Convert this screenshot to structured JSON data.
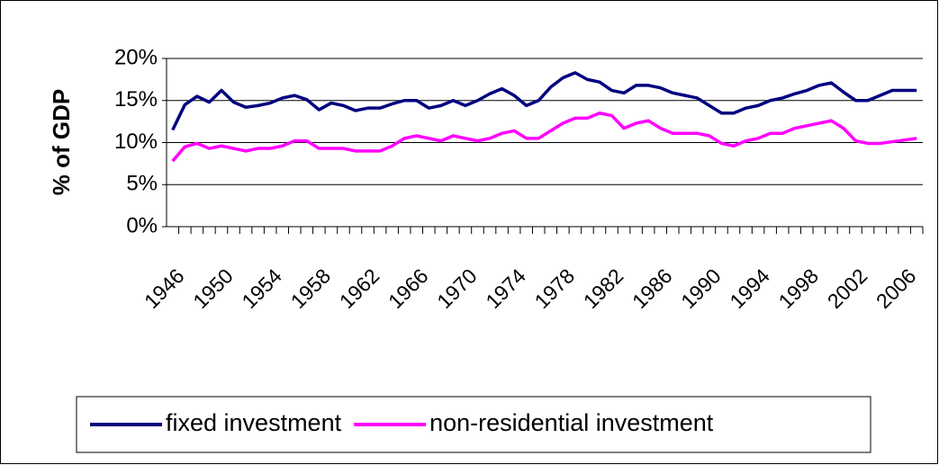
{
  "chart_data": {
    "type": "line",
    "y_label": "% of GDP",
    "categories": [
      "1946",
      null,
      null,
      null,
      "1950",
      null,
      null,
      null,
      "1954",
      null,
      null,
      null,
      "1958",
      null,
      null,
      null,
      "1962",
      null,
      null,
      null,
      "1966",
      null,
      null,
      null,
      "1970",
      null,
      null,
      null,
      "1974",
      null,
      null,
      null,
      "1978",
      null,
      null,
      null,
      "1982",
      null,
      null,
      null,
      "1986",
      null,
      null,
      null,
      "1990",
      null,
      null,
      null,
      "1994",
      null,
      null,
      null,
      "1998",
      null,
      null,
      null,
      "2002",
      null,
      null,
      null,
      "2006",
      null
    ],
    "series": [
      {
        "name": "fixed investment",
        "color": "#000080",
        "values": [
          11.5,
          14.5,
          15.5,
          14.8,
          16.2,
          14.8,
          14.2,
          14.4,
          14.7,
          15.3,
          15.6,
          15.1,
          13.9,
          14.7,
          14.4,
          13.8,
          14.1,
          14.1,
          14.6,
          15.0,
          15.0,
          14.1,
          14.4,
          15.0,
          14.4,
          15.0,
          15.8,
          16.4,
          15.6,
          14.4,
          15.0,
          16.6,
          17.7,
          18.3,
          17.5,
          17.2,
          16.2,
          15.9,
          16.8,
          16.8,
          16.5,
          15.9,
          15.6,
          15.3,
          14.4,
          13.5,
          13.5,
          14.1,
          14.4,
          15.0,
          15.3,
          15.8,
          16.2,
          16.8,
          17.1,
          16.0,
          15.0,
          15.0,
          15.6,
          16.2,
          16.2,
          16.2
        ]
      },
      {
        "name": "non-residential investment",
        "color": "#ff00ff",
        "values": [
          7.8,
          9.5,
          9.9,
          9.3,
          9.6,
          9.3,
          9.0,
          9.3,
          9.3,
          9.6,
          10.2,
          10.2,
          9.3,
          9.3,
          9.3,
          9.0,
          9.0,
          9.0,
          9.6,
          10.5,
          10.8,
          10.5,
          10.2,
          10.8,
          10.5,
          10.2,
          10.5,
          11.1,
          11.4,
          10.5,
          10.5,
          11.4,
          12.3,
          12.9,
          12.9,
          13.5,
          13.2,
          11.7,
          12.3,
          12.6,
          11.7,
          11.1,
          11.1,
          11.1,
          10.8,
          9.9,
          9.6,
          10.2,
          10.5,
          11.1,
          11.1,
          11.7,
          12.0,
          12.3,
          12.6,
          11.7,
          10.2,
          9.9,
          9.9,
          10.1,
          10.3,
          10.5
        ]
      }
    ],
    "ylim": [
      0,
      20
    ],
    "yticks": [
      {
        "value": 0,
        "label": "0%"
      },
      {
        "value": 5,
        "label": "5%"
      },
      {
        "value": 10,
        "label": "10%"
      },
      {
        "value": 15,
        "label": "15%"
      },
      {
        "value": 20,
        "label": "20%"
      }
    ],
    "grid": true,
    "legend": "bottom"
  }
}
